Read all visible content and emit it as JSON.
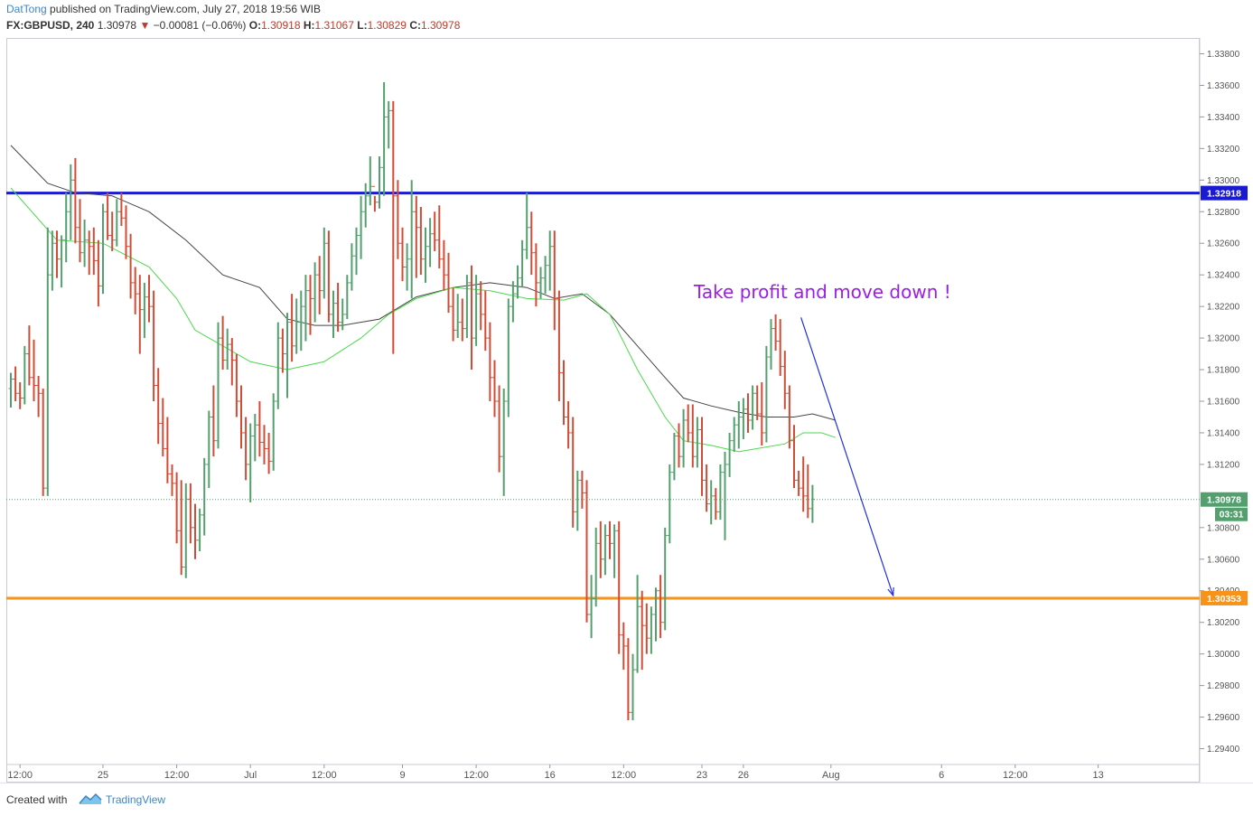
{
  "header": {
    "author": "DatTong",
    "published": "published on TradingView.com, July 27, 2018 19:56 WIB",
    "symbol": "FX:GBPUSD, 240",
    "last": "1.30978",
    "arrow": "▼",
    "change": "−0.00081 (−0.06%)",
    "open_label": "O:",
    "open": "1.30918",
    "high_label": "H:",
    "high": "1.31067",
    "low_label": "L:",
    "low": "1.30829",
    "close_label": "C:",
    "close": "1.30978"
  },
  "footer": {
    "created": "Created with",
    "brand": "TradingView"
  },
  "colors": {
    "up": "#53a06e",
    "down": "#d24b36",
    "resistance": "#1a1ad0",
    "support": "#f7931a",
    "annotation": "#9b1ee6",
    "arrow": "#2030e0",
    "ma_fast": "#4cd84c",
    "ma_slow": "#444444"
  },
  "chart_data": {
    "type": "ohlc",
    "ylim": [
      1.293,
      1.339
    ],
    "y_ticks": [
      "1.33800",
      "1.33600",
      "1.33400",
      "1.33200",
      "1.33000",
      "1.32800",
      "1.32600",
      "1.32400",
      "1.32200",
      "1.32000",
      "1.31800",
      "1.31600",
      "1.31400",
      "1.31200",
      "1.30800",
      "1.30600",
      "1.30400",
      "1.30200",
      "1.30000",
      "1.29800",
      "1.29600",
      "1.29400"
    ],
    "x_ticks": [
      "12:00",
      "25",
      "12:00",
      "Jul",
      "12:00",
      "9",
      "12:00",
      "16",
      "12:00",
      "23",
      "26",
      "Aug",
      "6",
      "12:00",
      "13"
    ],
    "x_tick_bars": [
      2,
      20,
      36,
      52,
      68,
      85,
      101,
      117,
      133,
      150,
      159,
      178,
      202,
      218,
      236
    ],
    "bars": [
      [
        1.3168,
        1.3178,
        1.3156,
        1.3174
      ],
      [
        1.3174,
        1.3182,
        1.316,
        1.3165
      ],
      [
        1.3165,
        1.3172,
        1.3155,
        1.3162
      ],
      [
        1.3162,
        1.3195,
        1.3158,
        1.319
      ],
      [
        1.319,
        1.3208,
        1.317,
        1.3175
      ],
      [
        1.3175,
        1.3199,
        1.316,
        1.317
      ],
      [
        1.317,
        1.3176,
        1.315,
        1.3165
      ],
      [
        1.3165,
        1.3168,
        1.31,
        1.3105
      ],
      [
        1.3105,
        1.327,
        1.31,
        1.324
      ],
      [
        1.324,
        1.3268,
        1.323,
        1.326
      ],
      [
        1.326,
        1.3268,
        1.3238,
        1.325
      ],
      [
        1.325,
        1.3265,
        1.3232,
        1.3262
      ],
      [
        1.3262,
        1.3292,
        1.3248,
        1.328
      ],
      [
        1.328,
        1.331,
        1.3262,
        1.33
      ],
      [
        1.33,
        1.3314,
        1.326,
        1.327
      ],
      [
        1.327,
        1.3288,
        1.3248,
        1.3254
      ],
      [
        1.3254,
        1.3275,
        1.3245,
        1.3262
      ],
      [
        1.3262,
        1.3268,
        1.324,
        1.3258
      ],
      [
        1.3258,
        1.327,
        1.324,
        1.3249
      ],
      [
        1.3249,
        1.3262,
        1.322,
        1.3233
      ],
      [
        1.3233,
        1.3285,
        1.3228,
        1.328
      ],
      [
        1.328,
        1.3292,
        1.3262,
        1.3265
      ],
      [
        1.3265,
        1.328,
        1.3255,
        1.3262
      ],
      [
        1.3262,
        1.3288,
        1.3258,
        1.328
      ],
      [
        1.328,
        1.3292,
        1.3271,
        1.3276
      ],
      [
        1.3276,
        1.3284,
        1.325,
        1.3258
      ],
      [
        1.3258,
        1.3266,
        1.3225,
        1.3235
      ],
      [
        1.3235,
        1.3245,
        1.3215,
        1.3228
      ],
      [
        1.3228,
        1.324,
        1.319,
        1.3218
      ],
      [
        1.3218,
        1.3235,
        1.32,
        1.3226
      ],
      [
        1.3226,
        1.324,
        1.321,
        1.322
      ],
      [
        1.322,
        1.323,
        1.316,
        1.317
      ],
      [
        1.317,
        1.3181,
        1.3133,
        1.3146
      ],
      [
        1.3146,
        1.3162,
        1.3125,
        1.313
      ],
      [
        1.313,
        1.315,
        1.3108,
        1.3114
      ],
      [
        1.3114,
        1.312,
        1.31,
        1.3108
      ],
      [
        1.3108,
        1.3115,
        1.307,
        1.3078
      ],
      [
        1.3078,
        1.311,
        1.305,
        1.3055
      ],
      [
        1.3055,
        1.3108,
        1.3048,
        1.3098
      ],
      [
        1.3098,
        1.3108,
        1.307,
        1.308
      ],
      [
        1.308,
        1.3095,
        1.306,
        1.3072
      ],
      [
        1.3072,
        1.3092,
        1.3065,
        1.3088
      ],
      [
        1.3088,
        1.3124,
        1.3075,
        1.312
      ],
      [
        1.312,
        1.3154,
        1.3105,
        1.315
      ],
      [
        1.315,
        1.317,
        1.3125,
        1.3135
      ],
      [
        1.3135,
        1.321,
        1.313,
        1.32
      ],
      [
        1.32,
        1.3214,
        1.318,
        1.3186
      ],
      [
        1.3186,
        1.3206,
        1.318,
        1.3196
      ],
      [
        1.3196,
        1.32,
        1.317,
        1.3186
      ],
      [
        1.3186,
        1.319,
        1.315,
        1.316
      ],
      [
        1.316,
        1.317,
        1.313,
        1.314
      ],
      [
        1.314,
        1.315,
        1.311,
        1.312
      ],
      [
        1.312,
        1.3146,
        1.3096,
        1.3138
      ],
      [
        1.3138,
        1.3152,
        1.3122,
        1.3145
      ],
      [
        1.3145,
        1.316,
        1.3125,
        1.3134
      ],
      [
        1.3134,
        1.3145,
        1.312,
        1.313
      ],
      [
        1.313,
        1.314,
        1.3114,
        1.3122
      ],
      [
        1.3122,
        1.3165,
        1.3116,
        1.316
      ],
      [
        1.316,
        1.321,
        1.3155,
        1.32
      ],
      [
        1.32,
        1.3206,
        1.3178,
        1.319
      ],
      [
        1.319,
        1.3216,
        1.3162,
        1.321
      ],
      [
        1.321,
        1.3228,
        1.3185,
        1.3195
      ],
      [
        1.3195,
        1.3225,
        1.319,
        1.321
      ],
      [
        1.321,
        1.323,
        1.3192,
        1.322
      ],
      [
        1.322,
        1.324,
        1.3198,
        1.323
      ],
      [
        1.323,
        1.324,
        1.3202,
        1.3225
      ],
      [
        1.3225,
        1.3248,
        1.321,
        1.324
      ],
      [
        1.324,
        1.3252,
        1.3215,
        1.323
      ],
      [
        1.323,
        1.327,
        1.3225,
        1.326
      ],
      [
        1.326,
        1.3268,
        1.321,
        1.3215
      ],
      [
        1.3215,
        1.323,
        1.32,
        1.3222
      ],
      [
        1.3222,
        1.3235,
        1.3204,
        1.321
      ],
      [
        1.321,
        1.3225,
        1.3205,
        1.3215
      ],
      [
        1.3215,
        1.324,
        1.3212,
        1.3235
      ],
      [
        1.3235,
        1.326,
        1.323,
        1.3252
      ],
      [
        1.3252,
        1.327,
        1.324,
        1.3265
      ],
      [
        1.3265,
        1.329,
        1.325,
        1.328
      ],
      [
        1.328,
        1.3298,
        1.327,
        1.329
      ],
      [
        1.329,
        1.3315,
        1.3284,
        1.3296
      ],
      [
        1.3296,
        1.329,
        1.328,
        1.3286
      ],
      [
        1.3286,
        1.3315,
        1.3282,
        1.3308
      ],
      [
        1.3308,
        1.3362,
        1.329,
        1.334
      ],
      [
        1.334,
        1.335,
        1.332,
        1.3344
      ],
      [
        1.3344,
        1.335,
        1.319,
        1.329
      ],
      [
        1.329,
        1.33,
        1.325,
        1.326
      ],
      [
        1.326,
        1.327,
        1.3236,
        1.3245
      ],
      [
        1.3245,
        1.326,
        1.323,
        1.325
      ],
      [
        1.325,
        1.33,
        1.3225,
        1.328
      ],
      [
        1.328,
        1.329,
        1.3238,
        1.327
      ],
      [
        1.327,
        1.3283,
        1.324,
        1.325
      ],
      [
        1.325,
        1.327,
        1.3235,
        1.3258
      ],
      [
        1.3258,
        1.3276,
        1.3245,
        1.3266
      ],
      [
        1.3266,
        1.328,
        1.3255,
        1.3262
      ],
      [
        1.3262,
        1.3284,
        1.3244,
        1.325
      ],
      [
        1.325,
        1.3262,
        1.323,
        1.324
      ],
      [
        1.324,
        1.3254,
        1.3216,
        1.322
      ],
      [
        1.322,
        1.3232,
        1.3198,
        1.3205
      ],
      [
        1.3205,
        1.3228,
        1.32,
        1.321
      ],
      [
        1.321,
        1.3225,
        1.3198,
        1.3206
      ],
      [
        1.3206,
        1.324,
        1.32,
        1.3235
      ],
      [
        1.3235,
        1.3246,
        1.318,
        1.32
      ],
      [
        1.32,
        1.324,
        1.3195,
        1.3228
      ],
      [
        1.3228,
        1.3236,
        1.3205,
        1.3215
      ],
      [
        1.3215,
        1.323,
        1.3192,
        1.32
      ],
      [
        1.32,
        1.321,
        1.316,
        1.3175
      ],
      [
        1.3175,
        1.3186,
        1.315,
        1.316
      ],
      [
        1.316,
        1.317,
        1.3115,
        1.3125
      ],
      [
        1.3125,
        1.3168,
        1.31,
        1.316
      ],
      [
        1.316,
        1.3225,
        1.315,
        1.322
      ],
      [
        1.322,
        1.3236,
        1.321,
        1.3228
      ],
      [
        1.3228,
        1.3246,
        1.3225,
        1.3238
      ],
      [
        1.3238,
        1.3262,
        1.3232,
        1.3256
      ],
      [
        1.3256,
        1.3292,
        1.325,
        1.327
      ],
      [
        1.327,
        1.328,
        1.324,
        1.3254
      ],
      [
        1.3254,
        1.326,
        1.322,
        1.3235
      ],
      [
        1.3235,
        1.3245,
        1.3225,
        1.3238
      ],
      [
        1.3238,
        1.3252,
        1.3228,
        1.3246
      ],
      [
        1.3246,
        1.3268,
        1.323,
        1.3258
      ],
      [
        1.3258,
        1.3268,
        1.3205,
        1.3225
      ],
      [
        1.3225,
        1.323,
        1.316,
        1.3178
      ],
      [
        1.3178,
        1.3186,
        1.3145,
        1.315
      ],
      [
        1.315,
        1.316,
        1.313,
        1.314
      ],
      [
        1.314,
        1.315,
        1.308,
        1.309
      ],
      [
        1.309,
        1.3116,
        1.3078,
        1.311
      ],
      [
        1.311,
        1.3116,
        1.3092,
        1.3102
      ],
      [
        1.3102,
        1.311,
        1.302,
        1.3025
      ],
      [
        1.3025,
        1.305,
        1.301,
        1.3035
      ],
      [
        1.3035,
        1.308,
        1.303,
        1.307
      ],
      [
        1.307,
        1.3084,
        1.3048,
        1.306
      ],
      [
        1.306,
        1.3082,
        1.305,
        1.3075
      ],
      [
        1.3075,
        1.3084,
        1.306,
        1.307
      ],
      [
        1.307,
        1.3082,
        1.3048,
        1.3078
      ],
      [
        1.3078,
        1.3084,
        1.3,
        1.3012
      ],
      [
        1.3012,
        1.302,
        1.299,
        1.3005
      ],
      [
        1.3005,
        1.301,
        1.2958,
        1.2963
      ],
      [
        1.2963,
        1.3,
        1.2958,
        1.299
      ],
      [
        1.299,
        1.305,
        1.2988,
        1.303
      ],
      [
        1.303,
        1.304,
        1.299,
        1.3018
      ],
      [
        1.3018,
        1.3032,
        1.3,
        1.301
      ],
      [
        1.301,
        1.303,
        1.3,
        1.3025
      ],
      [
        1.3025,
        1.3042,
        1.3008,
        1.304
      ],
      [
        1.304,
        1.305,
        1.301,
        1.302
      ],
      [
        1.302,
        1.308,
        1.3015,
        1.3075
      ],
      [
        1.3075,
        1.312,
        1.307,
        1.3115
      ],
      [
        1.3115,
        1.314,
        1.311,
        1.3138
      ],
      [
        1.3138,
        1.3146,
        1.3118,
        1.3125
      ],
      [
        1.3125,
        1.3155,
        1.3118,
        1.3148
      ],
      [
        1.3148,
        1.3158,
        1.3134,
        1.314
      ],
      [
        1.314,
        1.3158,
        1.3118,
        1.3125
      ],
      [
        1.3125,
        1.315,
        1.3118,
        1.3142
      ],
      [
        1.3142,
        1.315,
        1.31,
        1.311
      ],
      [
        1.311,
        1.312,
        1.309,
        1.3095
      ],
      [
        1.3095,
        1.311,
        1.3082,
        1.31
      ],
      [
        1.31,
        1.3105,
        1.3085,
        1.309
      ],
      [
        1.309,
        1.312,
        1.3085,
        1.3115
      ],
      [
        1.3115,
        1.3128,
        1.3072,
        1.312
      ],
      [
        1.312,
        1.314,
        1.3112,
        1.3135
      ],
      [
        1.3135,
        1.315,
        1.3128,
        1.3145
      ],
      [
        1.3145,
        1.316,
        1.313,
        1.315
      ],
      [
        1.315,
        1.3162,
        1.3136,
        1.3155
      ],
      [
        1.3155,
        1.3165,
        1.314,
        1.3148
      ],
      [
        1.3148,
        1.317,
        1.3142,
        1.3165
      ],
      [
        1.3165,
        1.317,
        1.3148,
        1.3152
      ],
      [
        1.3152,
        1.3172,
        1.3132,
        1.314
      ],
      [
        1.314,
        1.3195,
        1.3134,
        1.3188
      ],
      [
        1.3188,
        1.3212,
        1.318,
        1.3206
      ],
      [
        1.3206,
        1.3215,
        1.3192,
        1.3198
      ],
      [
        1.3198,
        1.3212,
        1.3176,
        1.3182
      ],
      [
        1.3182,
        1.3192,
        1.3155,
        1.3165
      ],
      [
        1.3165,
        1.317,
        1.313,
        1.3135
      ],
      [
        1.3135,
        1.3145,
        1.3105,
        1.311
      ],
      [
        1.311,
        1.3116,
        1.31,
        1.3105
      ],
      [
        1.3105,
        1.3125,
        1.309,
        1.31
      ],
      [
        1.31,
        1.312,
        1.3086,
        1.3092
      ],
      [
        1.3092,
        1.3107,
        1.3083,
        1.3098
      ]
    ],
    "ma_fast": [
      [
        0,
        1.3295
      ],
      [
        10,
        1.3262
      ],
      [
        20,
        1.326
      ],
      [
        30,
        1.3245
      ],
      [
        36,
        1.3225
      ],
      [
        40,
        1.3205
      ],
      [
        46,
        1.3195
      ],
      [
        52,
        1.3185
      ],
      [
        60,
        1.318
      ],
      [
        68,
        1.3185
      ],
      [
        76,
        1.32
      ],
      [
        82,
        1.3215
      ],
      [
        88,
        1.3225
      ],
      [
        96,
        1.3232
      ],
      [
        104,
        1.323
      ],
      [
        112,
        1.3225
      ],
      [
        120,
        1.3224
      ],
      [
        125,
        1.3228
      ],
      [
        130,
        1.3215
      ],
      [
        136,
        1.318
      ],
      [
        142,
        1.315
      ],
      [
        146,
        1.3135
      ],
      [
        152,
        1.3132
      ],
      [
        158,
        1.3128
      ],
      [
        162,
        1.313
      ],
      [
        168,
        1.3133
      ],
      [
        172,
        1.314
      ],
      [
        176,
        1.314
      ],
      [
        179,
        1.3137
      ]
    ],
    "ma_slow": [
      [
        0,
        1.3322
      ],
      [
        8,
        1.3298
      ],
      [
        14,
        1.3292
      ],
      [
        22,
        1.329
      ],
      [
        30,
        1.328
      ],
      [
        38,
        1.3262
      ],
      [
        46,
        1.324
      ],
      [
        54,
        1.3232
      ],
      [
        60,
        1.3212
      ],
      [
        66,
        1.3208
      ],
      [
        72,
        1.3208
      ],
      [
        80,
        1.3212
      ],
      [
        88,
        1.3226
      ],
      [
        96,
        1.3232
      ],
      [
        104,
        1.3235
      ],
      [
        112,
        1.3232
      ],
      [
        118,
        1.3225
      ],
      [
        124,
        1.3228
      ],
      [
        130,
        1.3215
      ],
      [
        136,
        1.3195
      ],
      [
        142,
        1.3175
      ],
      [
        146,
        1.3162
      ],
      [
        152,
        1.3157
      ],
      [
        158,
        1.3153
      ],
      [
        164,
        1.315
      ],
      [
        170,
        1.315
      ],
      [
        174,
        1.3152
      ],
      [
        179,
        1.3148
      ]
    ],
    "resistance": 1.32918,
    "resistance_label": "1.32918",
    "support": 1.30353,
    "support_label": "1.30353",
    "last_price": 1.30978,
    "last_label": "1.30978",
    "countdown": "03:31",
    "annotation": "Take profit and move down !",
    "arrow_from": [
      171.5,
      1.3213
    ],
    "arrow_to": [
      191.5,
      1.3037
    ]
  }
}
